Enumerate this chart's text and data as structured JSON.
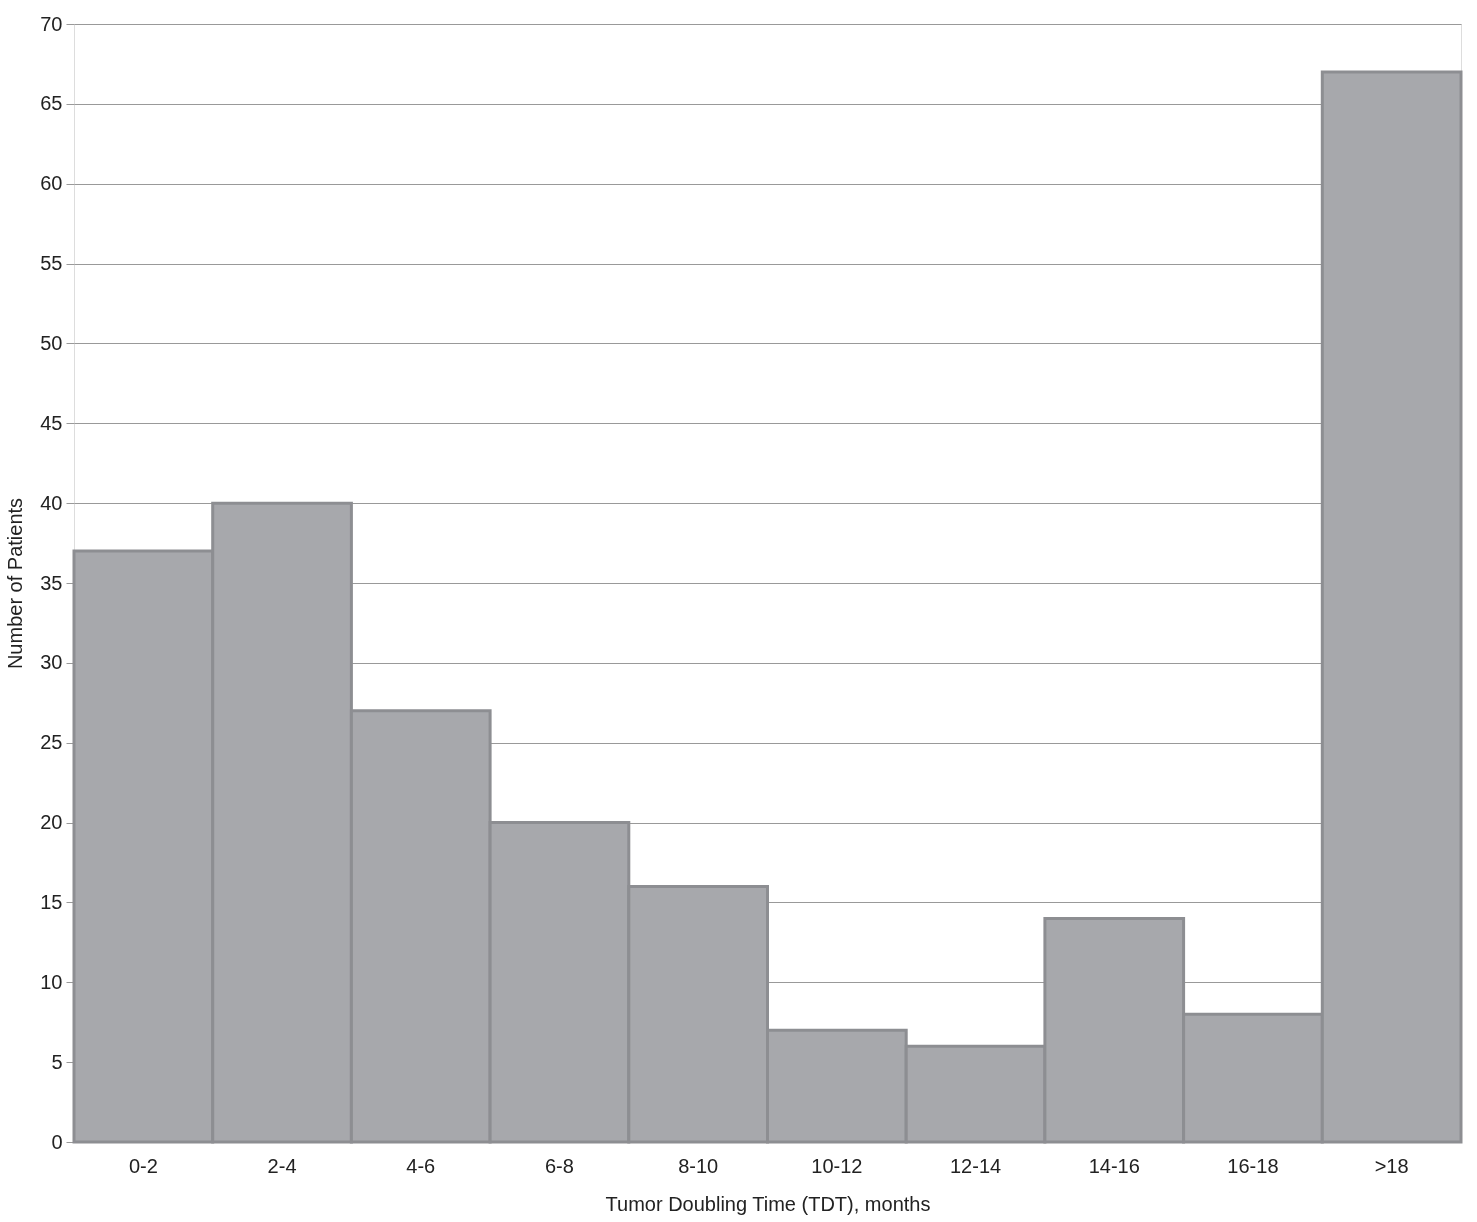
{
  "chart_data": {
    "type": "bar",
    "xlabel": "Tumor Doubling Time (TDT), months",
    "ylabel": "Number of Patients",
    "categories": [
      "0-2",
      "2-4",
      "4-6",
      "6-8",
      "8-10",
      "10-12",
      "12-14",
      "14-16",
      "16-18",
      ">18"
    ],
    "values": [
      37,
      40,
      27,
      20,
      16,
      7,
      6,
      14,
      8,
      67
    ],
    "color": "#a7a8ac",
    "ylim": [
      0,
      70
    ],
    "yticks": [
      0,
      5,
      10,
      15,
      20,
      25,
      30,
      35,
      40,
      45,
      50,
      55,
      60,
      65,
      70
    ],
    "grid": "y"
  }
}
